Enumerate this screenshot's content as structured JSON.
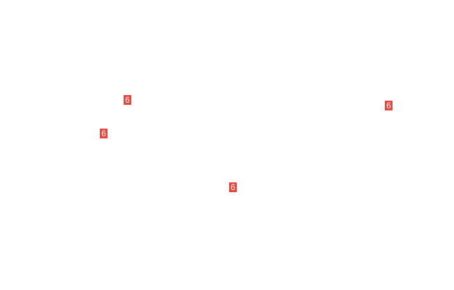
{
  "colors": {
    "badge_background": "#e8453c",
    "badge_text": "#ffffff"
  },
  "markers": [
    {
      "label": "6"
    },
    {
      "label": "6"
    },
    {
      "label": "6"
    },
    {
      "label": "6"
    }
  ]
}
